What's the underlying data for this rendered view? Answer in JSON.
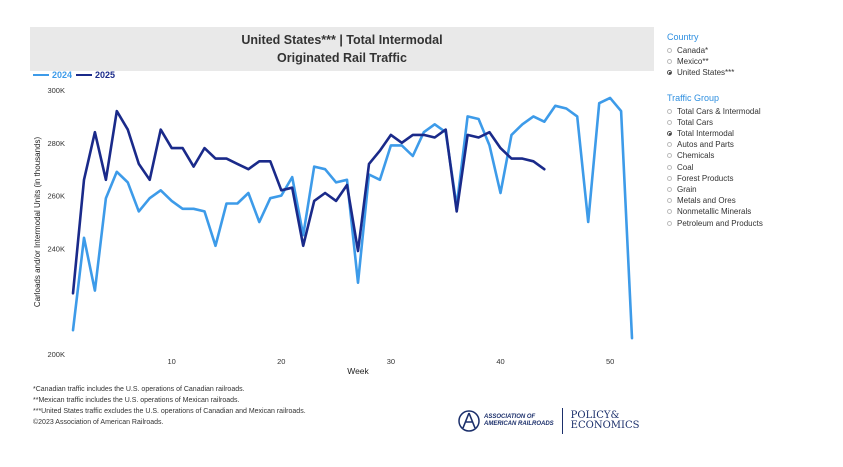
{
  "header": {
    "title_line1": "United States*** | Total Intermodal",
    "title_line2": "Originated Rail Traffic"
  },
  "legend": [
    {
      "label": "2024",
      "color": "#3d9be9"
    },
    {
      "label": "2025",
      "color": "#1a2a8a"
    }
  ],
  "chart_data": {
    "type": "line",
    "xlabel": "Week",
    "ylabel": "Carloads and/or Intermodal Units (in thousands)",
    "xlim": [
      1,
      53
    ],
    "ylim": [
      200,
      300
    ],
    "xticks": [
      10,
      20,
      30,
      40,
      50
    ],
    "yticks": [
      {
        "value": 200,
        "label": "200K"
      },
      {
        "value": 240,
        "label": "240K"
      },
      {
        "value": 260,
        "label": "260K"
      },
      {
        "value": 280,
        "label": "280K"
      },
      {
        "value": 300,
        "label": "300K"
      }
    ],
    "series": [
      {
        "name": "2024",
        "color": "#3d9be9",
        "x": [
          1,
          2,
          3,
          4,
          5,
          6,
          7,
          8,
          9,
          10,
          11,
          12,
          13,
          14,
          15,
          16,
          17,
          18,
          19,
          20,
          21,
          22,
          23,
          24,
          25,
          26,
          27,
          28,
          29,
          30,
          31,
          32,
          33,
          34,
          35,
          36,
          37,
          38,
          39,
          40,
          41,
          42,
          43,
          44,
          45,
          46,
          47,
          48,
          49,
          50,
          51,
          52
        ],
        "values": [
          209,
          244,
          224,
          259,
          269,
          265,
          254,
          259,
          262,
          258,
          255,
          255,
          254,
          241,
          257,
          257,
          261,
          250,
          259,
          260,
          267,
          245,
          271,
          270,
          265,
          266,
          227,
          268,
          266,
          279,
          279,
          275,
          284,
          287,
          284,
          256,
          290,
          289,
          279,
          261,
          283,
          287,
          290,
          288,
          294,
          293,
          290,
          250,
          295,
          297,
          292,
          206
        ]
      },
      {
        "name": "2025",
        "color": "#1a2a8a",
        "x": [
          1,
          2,
          3,
          4,
          5,
          6,
          7,
          8,
          9,
          10,
          11,
          12,
          13,
          14,
          15,
          16,
          17,
          18,
          19,
          20,
          21,
          22,
          23,
          24,
          25,
          26,
          27,
          28,
          29,
          30,
          31,
          32,
          33,
          34,
          35,
          36,
          37,
          38,
          39,
          40,
          41,
          42,
          43,
          44
        ],
        "values": [
          223,
          266,
          284,
          266,
          292,
          285,
          272,
          266,
          285,
          278,
          278,
          271,
          278,
          274,
          274,
          272,
          270,
          273,
          273,
          262,
          263,
          241,
          258,
          261,
          258,
          264,
          239,
          272,
          277,
          283,
          280,
          283,
          283,
          282,
          285,
          254,
          283,
          282,
          284,
          278,
          274,
          274,
          273,
          270
        ]
      }
    ]
  },
  "filters": {
    "country_header": "Country",
    "countries": [
      {
        "label": "Canada*",
        "selected": false
      },
      {
        "label": "Mexico**",
        "selected": false
      },
      {
        "label": "United States***",
        "selected": true
      }
    ],
    "traffic_header": "Traffic Group",
    "traffic_groups": [
      {
        "label": "Total Cars & Intermodal",
        "selected": false
      },
      {
        "label": "Total Cars",
        "selected": false
      },
      {
        "label": "Total Intermodal",
        "selected": true
      },
      {
        "label": "Autos and Parts",
        "selected": false
      },
      {
        "label": "Chemicals",
        "selected": false
      },
      {
        "label": "Coal",
        "selected": false
      },
      {
        "label": "Forest Products",
        "selected": false
      },
      {
        "label": "Grain",
        "selected": false
      },
      {
        "label": "Metals and Ores",
        "selected": false
      },
      {
        "label": "Nonmetallic Minerals",
        "selected": false
      },
      {
        "label": "Petroleum and Products",
        "selected": false
      }
    ]
  },
  "footnotes": [
    "*Canadian traffic includes the U.S. operations of Canadian railroads.",
    "**Mexican traffic includes the U.S. operations of Mexican railroads.",
    "***United States traffic excludes the U.S. operations of Canadian and Mexican railroads.",
    "©2023 Association of American Railroads."
  ],
  "logo": {
    "aar_line1": "ASSOCIATION OF",
    "aar_line2": "AMERICAN RAILROADS",
    "pe_line1": "POLICY&",
    "pe_line2": "ECONOMICS"
  }
}
